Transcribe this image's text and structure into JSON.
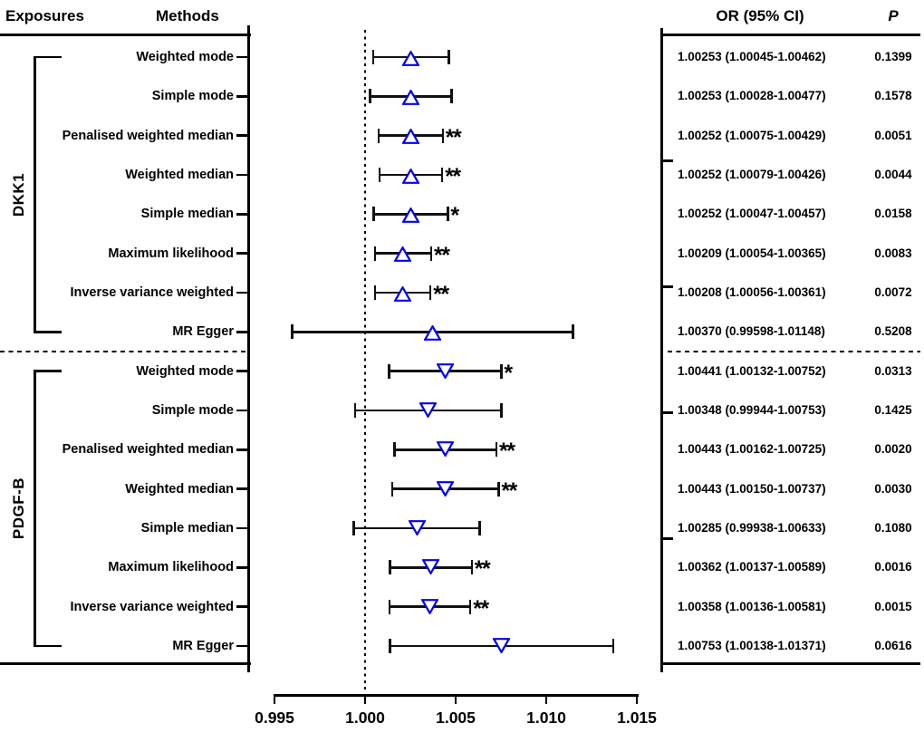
{
  "headers": {
    "exposures": "Exposures",
    "methods": "Methods",
    "or_ci": "OR (95% CI)",
    "p": "P"
  },
  "colors": {
    "marker_blue": "#0202ee",
    "line_black": "#111111"
  },
  "chart_data": {
    "type": "forest",
    "x_axis": {
      "tick_labels": [
        "0.995",
        "1.000",
        "1.005",
        "1.010",
        "1.015"
      ],
      "tick_values": [
        0.995,
        1.0,
        1.005,
        1.01,
        1.015
      ],
      "range": [
        0.995,
        1.015
      ],
      "reference_line": 1.0
    },
    "legend": "none",
    "groups": [
      {
        "exposure": "DKK1",
        "marker": "triangle-up",
        "row_start": 0,
        "row_count": 8
      },
      {
        "exposure": "PDGF-B",
        "marker": "triangle-down",
        "row_start": 8,
        "row_count": 8
      }
    ],
    "rows": [
      {
        "group": "DKK1",
        "method": "Weighted mode",
        "or": 1.00253,
        "ci_low": 1.00045,
        "ci_high": 1.00462,
        "or_ci": "1.00253 (1.00045-1.00462)",
        "p": "0.1399",
        "sig": ""
      },
      {
        "group": "DKK1",
        "method": "Simple mode",
        "or": 1.00253,
        "ci_low": 1.00028,
        "ci_high": 1.00477,
        "or_ci": "1.00253 (1.00028-1.00477)",
        "p": "0.1578",
        "sig": ""
      },
      {
        "group": "DKK1",
        "method": "Penalised weighted median",
        "or": 1.00252,
        "ci_low": 1.00075,
        "ci_high": 1.00429,
        "or_ci": "1.00252 (1.00075-1.00429)",
        "p": "0.0051",
        "sig": "**"
      },
      {
        "group": "DKK1",
        "method": "Weighted median",
        "or": 1.00252,
        "ci_low": 1.00079,
        "ci_high": 1.00426,
        "or_ci": "1.00252 (1.00079-1.00426)",
        "p": "0.0044",
        "sig": "**"
      },
      {
        "group": "DKK1",
        "method": "Simple median",
        "or": 1.00252,
        "ci_low": 1.00047,
        "ci_high": 1.00457,
        "or_ci": "1.00252 (1.00047-1.00457)",
        "p": "0.0158",
        "sig": "*"
      },
      {
        "group": "DKK1",
        "method": "Maximum likelihood",
        "or": 1.00209,
        "ci_low": 1.00054,
        "ci_high": 1.00365,
        "or_ci": "1.00209 (1.00054-1.00365)",
        "p": "0.0083",
        "sig": "**"
      },
      {
        "group": "DKK1",
        "method": "Inverse variance weighted",
        "or": 1.00208,
        "ci_low": 1.00056,
        "ci_high": 1.00361,
        "or_ci": "1.00208 (1.00056-1.00361)",
        "p": "0.0072",
        "sig": "**"
      },
      {
        "group": "DKK1",
        "method": "MR Egger",
        "or": 1.0037,
        "ci_low": 0.99598,
        "ci_high": 1.01148,
        "or_ci": "1.00370 (0.99598-1.01148)",
        "p": "0.5208",
        "sig": ""
      },
      {
        "group": "PDGF-B",
        "method": "Weighted mode",
        "or": 1.00441,
        "ci_low": 1.00132,
        "ci_high": 1.00752,
        "or_ci": "1.00441 (1.00132-1.00752)",
        "p": "0.0313",
        "sig": "*"
      },
      {
        "group": "PDGF-B",
        "method": "Simple mode",
        "or": 1.00348,
        "ci_low": 0.99944,
        "ci_high": 1.00753,
        "or_ci": "1.00348 (0.99944-1.00753)",
        "p": "0.1425",
        "sig": ""
      },
      {
        "group": "PDGF-B",
        "method": "Penalised weighted median",
        "or": 1.00443,
        "ci_low": 1.00162,
        "ci_high": 1.00725,
        "or_ci": "1.00443 (1.00162-1.00725)",
        "p": "0.0020",
        "sig": "**"
      },
      {
        "group": "PDGF-B",
        "method": "Weighted median",
        "or": 1.00443,
        "ci_low": 1.0015,
        "ci_high": 1.00737,
        "or_ci": "1.00443 (1.00150-1.00737)",
        "p": "0.0030",
        "sig": "**"
      },
      {
        "group": "PDGF-B",
        "method": "Simple median",
        "or": 1.00285,
        "ci_low": 0.99938,
        "ci_high": 1.00633,
        "or_ci": "1.00285 (0.99938-1.00633)",
        "p": "0.1080",
        "sig": ""
      },
      {
        "group": "PDGF-B",
        "method": "Maximum likelihood",
        "or": 1.00362,
        "ci_low": 1.00137,
        "ci_high": 1.00589,
        "or_ci": "1.00362 (1.00137-1.00589)",
        "p": "0.0016",
        "sig": "**"
      },
      {
        "group": "PDGF-B",
        "method": "Inverse variance weighted",
        "or": 1.00358,
        "ci_low": 1.00136,
        "ci_high": 1.00581,
        "or_ci": "1.00358 (1.00136-1.00581)",
        "p": "0.0015",
        "sig": "**"
      },
      {
        "group": "PDGF-B",
        "method": "MR Egger",
        "or": 1.00753,
        "ci_low": 1.00138,
        "ci_high": 1.01371,
        "or_ci": "1.00753 (1.00138-1.01371)",
        "p": "0.0616",
        "sig": ""
      }
    ]
  }
}
